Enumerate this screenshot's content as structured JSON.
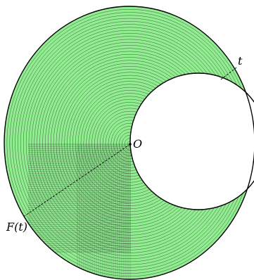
{
  "labels": {
    "origin": "O",
    "radius_end": "t",
    "boundary_point": "F(t)"
  },
  "colors": {
    "region_fill": "#90ee90",
    "hatch": "#2a2a2a",
    "outline": "#000000",
    "background": "#ffffff"
  }
}
